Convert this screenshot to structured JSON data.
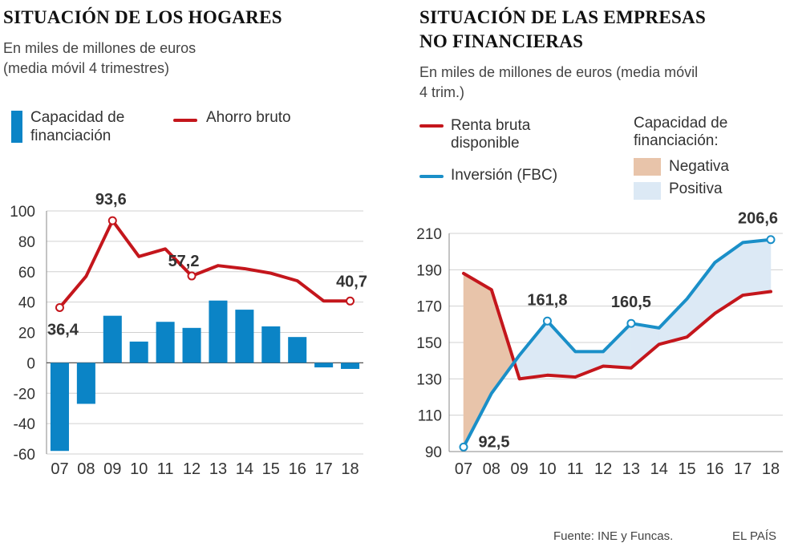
{
  "left": {
    "title": "SITUACIÓN DE LOS HOGARES",
    "subtitle_1": "En miles de millones de euros",
    "subtitle_2": "(media móvil 4 trimestres)",
    "legend_bar_1": "Capacidad de",
    "legend_bar_2": "financiación",
    "legend_line": "Ahorro bruto"
  },
  "right": {
    "title_1": "SITUACIÓN DE LAS EMPRESAS",
    "title_2": "NO FINANCIERAS",
    "subtitle_1": "En miles de millones de euros (media móvil",
    "subtitle_2": "4 trim.)",
    "legend_renta_1": "Renta bruta",
    "legend_renta_2": "disponible",
    "legend_inv": "Inversión (FBC)",
    "legend_cap_1": "Capacidad de",
    "legend_cap_2": "financiación:",
    "legend_neg": "Negativa",
    "legend_pos": "Positiva"
  },
  "footer": {
    "source": "Fuente: INE y Funcas.",
    "brand": "EL PAÍS"
  },
  "colors": {
    "bar": "#0b84c6",
    "red": "#c4161c",
    "blue": "#1a8fc8",
    "neg": "#e8c4aa",
    "pos": "#dce9f5",
    "grid": "#d0d0d0",
    "axis": "#888888"
  },
  "chart_data": [
    {
      "type": "bar+line",
      "title": "SITUACIÓN DE LOS HOGARES",
      "categories": [
        "07",
        "08",
        "09",
        "10",
        "11",
        "12",
        "13",
        "14",
        "15",
        "16",
        "17",
        "18"
      ],
      "ylim": [
        -60,
        100
      ],
      "yticks": [
        "100",
        "80",
        "60",
        "40",
        "20",
        "0",
        "-20",
        "-40",
        "-60"
      ],
      "series": [
        {
          "name": "Capacidad de financiación",
          "kind": "bar",
          "values": [
            -58,
            -27,
            31,
            14,
            27,
            23,
            41,
            35,
            24,
            17,
            -3,
            -4
          ]
        },
        {
          "name": "Ahorro bruto",
          "kind": "line",
          "values": [
            36.4,
            57,
            93.6,
            70,
            75,
            57.2,
            64,
            62,
            59,
            54,
            40.7,
            40.7
          ]
        }
      ],
      "annotations": [
        {
          "index": 0,
          "label": "36,4"
        },
        {
          "index": 2,
          "label": "93,6"
        },
        {
          "index": 5,
          "label": "57,2"
        },
        {
          "index": 11,
          "label": "40,7"
        }
      ]
    },
    {
      "type": "line",
      "title": "SITUACIÓN DE LAS EMPRESAS NO FINANCIERAS",
      "categories": [
        "07",
        "08",
        "09",
        "10",
        "11",
        "12",
        "13",
        "14",
        "15",
        "16",
        "17",
        "18"
      ],
      "ylim": [
        90,
        210
      ],
      "yticks": [
        "210",
        "190",
        "170",
        "150",
        "130",
        "110",
        "90"
      ],
      "series": [
        {
          "name": "Renta bruta disponible",
          "values": [
            188,
            179,
            130,
            132,
            131,
            137,
            136,
            149,
            153,
            166,
            176,
            178
          ]
        },
        {
          "name": "Inversión (FBC)",
          "values": [
            92.5,
            122,
            143,
            161.8,
            145,
            145,
            160.5,
            158,
            174,
            194,
            205,
            206.6
          ]
        }
      ],
      "annotations": [
        {
          "index": 0,
          "label": "92,5"
        },
        {
          "index": 3,
          "label": "161,8"
        },
        {
          "index": 6,
          "label": "160,5"
        },
        {
          "index": 11,
          "label": "206,6"
        }
      ]
    }
  ]
}
